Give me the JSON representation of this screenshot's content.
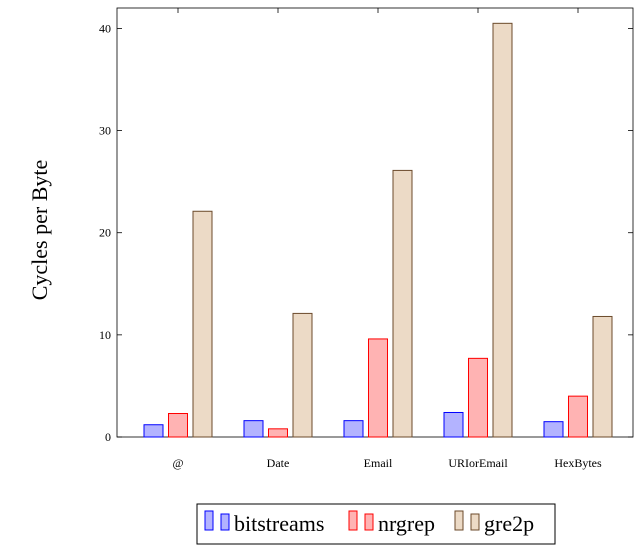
{
  "chart_data": {
    "type": "bar",
    "title": "",
    "xlabel": "",
    "ylabel": "Cycles per Byte",
    "ylim": [
      0,
      42
    ],
    "yticks": [
      0,
      10,
      20,
      30,
      40
    ],
    "grid": false,
    "legend_position": "bottom-center",
    "categories": [
      "@",
      "Date",
      "Email",
      "URIorEmail",
      "HexBytes"
    ],
    "series": [
      {
        "name": "bitstreams",
        "values": [
          1.2,
          1.6,
          1.6,
          2.4,
          1.5
        ],
        "fill": "#b3b3ff",
        "stroke": "#0000ff"
      },
      {
        "name": "nrgrep",
        "values": [
          2.3,
          0.8,
          9.6,
          7.7,
          4.0
        ],
        "fill": "#ffb3b3",
        "stroke": "#ff0000"
      },
      {
        "name": "gre2p",
        "values": [
          22.1,
          12.1,
          26.1,
          40.5,
          11.8
        ],
        "fill": "#ecdac6",
        "stroke": "#6b4a2b"
      }
    ]
  }
}
